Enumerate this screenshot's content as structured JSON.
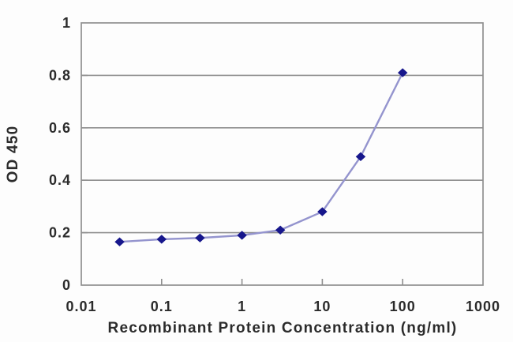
{
  "chart_data": {
    "type": "line",
    "x": [
      0.03,
      0.1,
      0.3,
      1,
      3,
      10,
      30,
      100
    ],
    "y": [
      0.165,
      0.175,
      0.18,
      0.19,
      0.21,
      0.28,
      0.49,
      0.81
    ],
    "title": "",
    "xlabel": "Recombinant Protein Concentration (ng/ml)",
    "ylabel": "OD 450",
    "x_scale": "log",
    "xlim": [
      0.01,
      1000
    ],
    "ylim": [
      0,
      1
    ],
    "x_ticks": [
      "0.01",
      "0.1",
      "1",
      "10",
      "100",
      "1000"
    ],
    "y_ticks": [
      "0",
      "0.2",
      "0.4",
      "0.6",
      "0.8",
      "1"
    ],
    "grid": "horizontal",
    "legend": "none",
    "marker": "diamond",
    "colors": {
      "line": "#9494ce",
      "marker": "#17178c",
      "frame": "#8f8f8f",
      "grid": "#8f8f8f",
      "text": "#2b2b2b"
    }
  }
}
